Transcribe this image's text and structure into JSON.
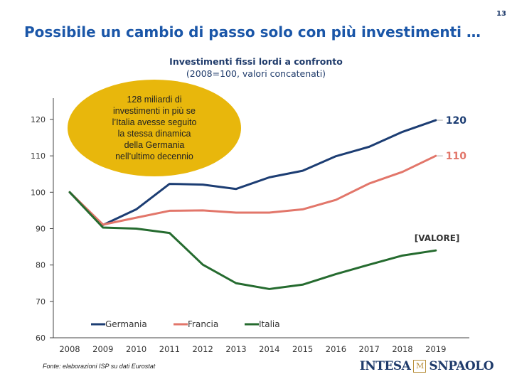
{
  "page_number": "13",
  "slide_title": "Possibile un cambio di passo solo con più investimenti …",
  "source_note": "Fonte: elaborazioni ISP su dati Eurostat",
  "logo": {
    "left_text": "INTESA",
    "right_text": "SNPAOLO",
    "mark": "M"
  },
  "callout": {
    "lines": [
      "128 miliardi di",
      "investimenti in più se",
      "l’Italia avesse seguito",
      "la stessa dinamica",
      "della Germania",
      "nell’ultimo decennio"
    ],
    "color": "#e8b70c"
  },
  "chart_data": {
    "type": "line",
    "title": "Investimenti fissi lordi a confronto",
    "subtitle": "(2008=100, valori concatenati)",
    "xlabel": "",
    "ylabel": "",
    "ylim": [
      60,
      125
    ],
    "yticks": [
      60,
      70,
      80,
      90,
      100,
      110,
      120
    ],
    "x": [
      "2008",
      "2009",
      "2010",
      "2011",
      "2012",
      "2013",
      "2014",
      "2015",
      "2016",
      "2017",
      "2018",
      "2019"
    ],
    "legend_position": "bottom-left",
    "series": [
      {
        "name": "Germania",
        "color": "#1c3d73",
        "end_label": "120",
        "values": [
          100,
          91,
          95.3,
          102.3,
          102.1,
          100.9,
          104.1,
          105.9,
          109.9,
          112.5,
          116.6,
          119.8
        ]
      },
      {
        "name": "Francia",
        "color": "#e2766a",
        "end_label": "110",
        "values": [
          100,
          91.1,
          93,
          94.9,
          95,
          94.4,
          94.4,
          95.3,
          97.9,
          102.4,
          105.6,
          110
        ]
      },
      {
        "name": "Italia",
        "color": "#256b2f",
        "end_label": "[VALORE]",
        "values": [
          100,
          90.3,
          90,
          88.8,
          80.1,
          75,
          73.4,
          74.6,
          77.5,
          80.1,
          82.6,
          84
        ]
      }
    ]
  }
}
